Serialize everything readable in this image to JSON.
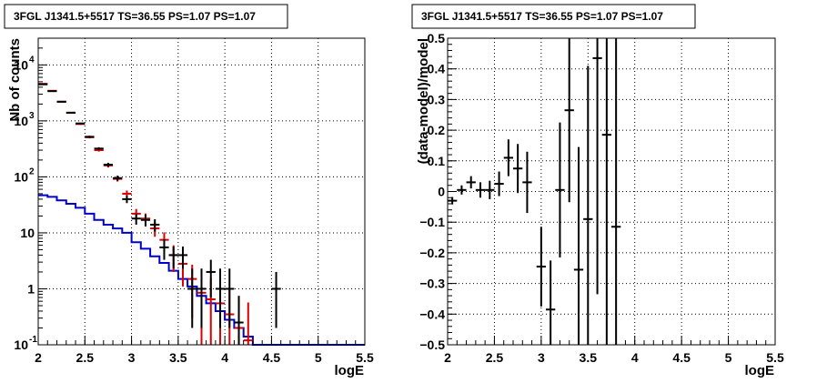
{
  "chart_data": [
    {
      "type": "scatter",
      "title": "3FGL J1341.5+5517 TS=36.55 PS=1.07 PS=1.07",
      "xlabel": "logE",
      "ylabel": "Nb of counts",
      "xlim": [
        2,
        5.5
      ],
      "ylim": [
        0.1,
        30000
      ],
      "yscale": "log",
      "grid": true,
      "xticks": [
        "2",
        "2.5",
        "3",
        "3.5",
        "4",
        "4.5",
        "5",
        "5.5"
      ],
      "yticks": [
        {
          "value": 0.1,
          "label": "10",
          "exp": "-1"
        },
        {
          "value": 1,
          "label": "1",
          "exp": ""
        },
        {
          "value": 10,
          "label": "10",
          "exp": ""
        },
        {
          "value": 100,
          "label": "10",
          "exp": "2"
        },
        {
          "value": 1000,
          "label": "10",
          "exp": "3"
        },
        {
          "value": 10000,
          "label": "10",
          "exp": "4"
        }
      ],
      "colors": {
        "data": "#000000",
        "model": "#dd0000",
        "background": "#0000cc"
      },
      "series": [
        {
          "kind": "errorbar",
          "color": "#000000",
          "x": [
            2.05,
            2.15,
            2.25,
            2.35,
            2.45,
            2.55,
            2.65,
            2.75,
            2.85,
            2.95,
            3.05,
            3.15,
            3.25,
            3.35,
            3.45,
            3.55,
            3.65,
            3.75,
            3.85,
            3.95,
            4.05,
            4.15,
            4.55
          ],
          "y": [
            4500,
            3400,
            2200,
            1400,
            900,
            520,
            320,
            165,
            95,
            40,
            18,
            17,
            14,
            5.5,
            4,
            4,
            1,
            1,
            2,
            1,
            1,
            0.25,
            1
          ],
          "yerr": [
            [
              60,
              55,
              45,
              35,
              30,
              23,
              18,
              13,
              10,
              6,
              4,
              4,
              3.5,
              2.2,
              1.7,
              1.7,
              0.8,
              0.8,
              1.3,
              0.8,
              0.8,
              0.2,
              0.8
            ],
            [
              60,
              55,
              45,
              35,
              30,
              23,
              18,
              13,
              10,
              6,
              4,
              4,
              3.5,
              2.2,
              1.7,
              1.7,
              1.3,
              1.3,
              1.3,
              1.3,
              1.3,
              0.5,
              1.0
            ]
          ]
        },
        {
          "kind": "errorbar",
          "color": "#dd0000",
          "x": [
            2.05,
            2.15,
            2.25,
            2.35,
            2.45,
            2.55,
            2.65,
            2.75,
            2.85,
            2.95,
            3.05,
            3.15,
            3.25,
            3.35,
            3.45,
            3.55,
            3.65,
            3.75,
            3.85,
            3.95,
            4.05,
            4.15,
            4.25
          ],
          "y": [
            4600,
            3450,
            2200,
            1400,
            880,
            510,
            300,
            160,
            92,
            50,
            22,
            18,
            12,
            7.5,
            4,
            2.8,
            1.5,
            0.85,
            0.65,
            0.55,
            0.35,
            0.2,
            0.12
          ],
          "yerr": [
            [
              68,
              59,
              47,
              37,
              30,
              23,
              17,
              13,
              9.6,
              7,
              4.7,
              4.2,
              3.5,
              2.7,
              2,
              1.7,
              1.2,
              0.75,
              0.58,
              0.5,
              0.32,
              0.18,
              0.1
            ],
            [
              68,
              59,
              47,
              37,
              30,
              23,
              17,
              13,
              9.6,
              7,
              4.7,
              4.2,
              3.5,
              2.7,
              2,
              1.7,
              1.2,
              0.95,
              0.9,
              0.85,
              0.65,
              0.5,
              0.45
            ]
          ]
        },
        {
          "kind": "step",
          "color": "#0000cc",
          "edges": [
            2.0,
            2.1,
            2.2,
            2.3,
            2.4,
            2.5,
            2.6,
            2.7,
            2.8,
            2.9,
            3.0,
            3.1,
            3.2,
            3.3,
            3.4,
            3.5,
            3.6,
            3.7,
            3.8,
            3.9,
            4.0,
            4.1,
            4.2,
            4.3,
            5.5
          ],
          "values": [
            47,
            44,
            38,
            33,
            28,
            22,
            17,
            14,
            12,
            10,
            6.8,
            5.2,
            3.8,
            2.9,
            2.1,
            1.5,
            1.1,
            0.75,
            0.55,
            0.4,
            0.28,
            0.2,
            0.14,
            0.1
          ]
        }
      ]
    },
    {
      "type": "scatter",
      "title": "3FGL J1341.5+5517 TS=36.55 PS=1.07 PS=1.07",
      "xlabel": "logE",
      "ylabel": "(data-model)/model",
      "xlim": [
        2,
        5.5
      ],
      "ylim": [
        -0.5,
        0.5
      ],
      "grid": true,
      "xticks": [
        "2",
        "2.5",
        "3",
        "3.5",
        "4",
        "4.5",
        "5",
        "5.5"
      ],
      "yticks": [
        "-0.5",
        "-0.4",
        "-0.3",
        "-0.2",
        "-0.1",
        "0",
        "0.1",
        "0.2",
        "0.3",
        "0.4",
        "0.5"
      ],
      "series": [
        {
          "kind": "errorbar",
          "color": "#000000",
          "x": [
            2.05,
            2.15,
            2.25,
            2.35,
            2.45,
            2.55,
            2.65,
            2.75,
            2.85,
            3.0,
            3.1,
            3.2,
            3.3,
            3.4,
            3.5,
            3.6,
            3.7,
            3.8
          ],
          "y": [
            -0.03,
            0.005,
            0.03,
            0.005,
            0.005,
            0.025,
            0.11,
            0.075,
            0.03,
            -0.245,
            -0.385,
            0.005,
            0.265,
            -0.255,
            -0.09,
            0.435,
            0.185,
            -0.115
          ],
          "yerr": [
            0.012,
            0.015,
            0.02,
            0.025,
            0.03,
            0.04,
            0.06,
            0.08,
            0.1,
            0.13,
            0.16,
            0.22,
            0.3,
            0.4,
            0.5,
            0.77,
            0.8,
            0.75
          ]
        }
      ]
    }
  ]
}
